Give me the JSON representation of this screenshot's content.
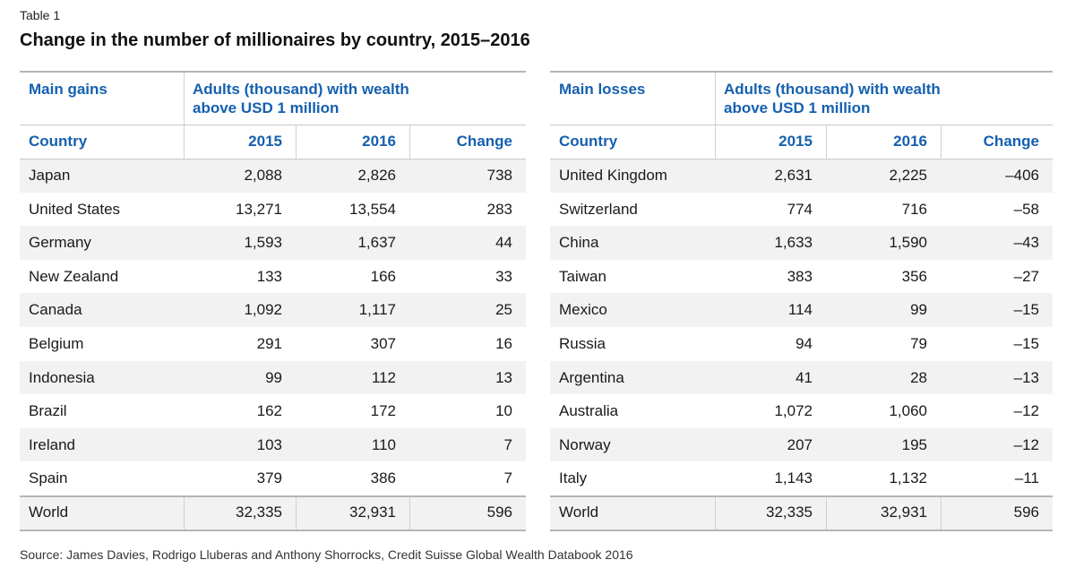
{
  "label": "Table 1",
  "title": "Change in the number of millionaires by country, 2015–2016",
  "tables": [
    {
      "group": "Main gains",
      "measure": [
        "Adults (thousand) with wealth",
        "above USD 1 million"
      ],
      "columns": [
        "Country",
        "2015",
        "2016",
        "Change"
      ],
      "rows": [
        [
          "Japan",
          "2,088",
          "2,826",
          "738"
        ],
        [
          "United States",
          "13,271",
          "13,554",
          "283"
        ],
        [
          "Germany",
          "1,593",
          "1,637",
          "44"
        ],
        [
          "New Zealand",
          "133",
          "166",
          "33"
        ],
        [
          "Canada",
          "1,092",
          "1,117",
          "25"
        ],
        [
          "Belgium",
          "291",
          "307",
          "16"
        ],
        [
          "Indonesia",
          "99",
          "112",
          "13"
        ],
        [
          "Brazil",
          "162",
          "172",
          "10"
        ],
        [
          "Ireland",
          "103",
          "110",
          "7"
        ],
        [
          "Spain",
          "379",
          "386",
          "7"
        ]
      ],
      "total": [
        "World",
        "32,335",
        "32,931",
        "596"
      ]
    },
    {
      "group": "Main losses",
      "measure": [
        "Adults (thousand) with wealth",
        "above USD 1 million"
      ],
      "columns": [
        "Country",
        "2015",
        "2016",
        "Change"
      ],
      "rows": [
        [
          "United Kingdom",
          "2,631",
          "2,225",
          "–406"
        ],
        [
          "Switzerland",
          "774",
          "716",
          "–58"
        ],
        [
          "China",
          "1,633",
          "1,590",
          "–43"
        ],
        [
          "Taiwan",
          "383",
          "356",
          "–27"
        ],
        [
          "Mexico",
          "114",
          "99",
          "–15"
        ],
        [
          "Russia",
          "94",
          "79",
          "–15"
        ],
        [
          "Argentina",
          "41",
          "28",
          "–13"
        ],
        [
          "Australia",
          "1,072",
          "1,060",
          "–12"
        ],
        [
          "Norway",
          "207",
          "195",
          "–12"
        ],
        [
          "Italy",
          "1,143",
          "1,132",
          "–11"
        ]
      ],
      "total": [
        "World",
        "32,335",
        "32,931",
        "596"
      ]
    }
  ],
  "source": "Source: James Davies, Rodrigo Lluberas and Anthony Shorrocks, Credit Suisse Global Wealth Databook 2016"
}
